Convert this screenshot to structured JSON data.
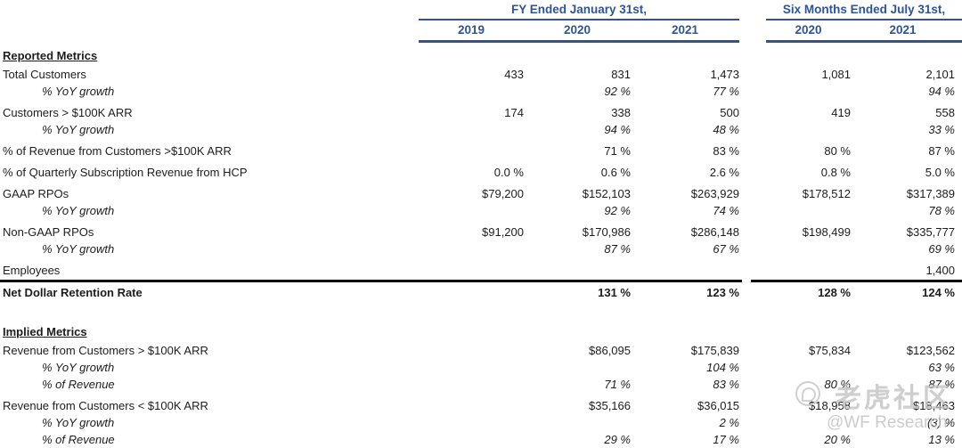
{
  "accent_color": "#2F5496",
  "header": {
    "groups": [
      {
        "title": "FY Ended January 31st,",
        "years": [
          "2019",
          "2020",
          "2021"
        ]
      },
      {
        "title": "Six Months Ended July 31st,",
        "years": [
          "2020",
          "2021"
        ]
      }
    ]
  },
  "table": {
    "columns": [
      "FY 2019",
      "FY 2020",
      "FY 2021",
      "6M 2020",
      "6M 2021"
    ],
    "sections": [
      {
        "title": "Reported Metrics",
        "rows": [
          {
            "label": "Total Customers",
            "sub": false,
            "bold": false,
            "rule_above": false,
            "gap_after": false,
            "values": [
              "433",
              "831",
              "1,473",
              "1,081",
              "2,101"
            ]
          },
          {
            "label": "% YoY growth",
            "sub": true,
            "bold": false,
            "rule_above": false,
            "gap_after": true,
            "values": [
              "",
              "92 %",
              "77 %",
              "",
              "94 %"
            ]
          },
          {
            "label": "Customers > $100K ARR",
            "sub": false,
            "bold": false,
            "rule_above": false,
            "gap_after": false,
            "values": [
              "174",
              "338",
              "500",
              "419",
              "558"
            ]
          },
          {
            "label": "% YoY growth",
            "sub": true,
            "bold": false,
            "rule_above": false,
            "gap_after": true,
            "values": [
              "",
              "94 %",
              "48 %",
              "",
              "33 %"
            ]
          },
          {
            "label": "% of Revenue from Customers >$100K ARR",
            "sub": false,
            "bold": false,
            "rule_above": false,
            "gap_after": true,
            "values": [
              "",
              "71 %",
              "83 %",
              "80 %",
              "87 %"
            ]
          },
          {
            "label": "% of Quarterly Subscription Revenue from HCP",
            "sub": false,
            "bold": false,
            "rule_above": false,
            "gap_after": true,
            "values": [
              "0.0 %",
              "0.6 %",
              "2.6 %",
              "0.8 %",
              "5.0 %"
            ]
          },
          {
            "label": "GAAP RPOs",
            "sub": false,
            "bold": false,
            "rule_above": false,
            "gap_after": false,
            "values": [
              "$79,200",
              "$152,103",
              "$263,929",
              "$178,512",
              "$317,389"
            ]
          },
          {
            "label": "% YoY growth",
            "sub": true,
            "bold": false,
            "rule_above": false,
            "gap_after": true,
            "values": [
              "",
              "92 %",
              "74 %",
              "",
              "78 %"
            ]
          },
          {
            "label": "Non-GAAP RPOs",
            "sub": false,
            "bold": false,
            "rule_above": false,
            "gap_after": false,
            "values": [
              "$91,200",
              "$170,986",
              "$286,148",
              "$198,499",
              "$335,777"
            ]
          },
          {
            "label": "% YoY growth",
            "sub": true,
            "bold": false,
            "rule_above": false,
            "gap_after": true,
            "values": [
              "",
              "87 %",
              "67 %",
              "",
              "69 %"
            ]
          },
          {
            "label": "Employees",
            "sub": false,
            "bold": false,
            "rule_above": false,
            "gap_after": false,
            "values": [
              "",
              "",
              "",
              "",
              "1,400"
            ]
          },
          {
            "label": "Net Dollar Retention Rate",
            "sub": false,
            "bold": true,
            "rule_above": true,
            "gap_after": false,
            "values": [
              "",
              "131 %",
              "123 %",
              "128 %",
              "124 %"
            ]
          }
        ]
      },
      {
        "title": "Implied Metrics",
        "rows": [
          {
            "label": "Revenue from Customers > $100K ARR",
            "sub": false,
            "bold": false,
            "rule_above": false,
            "gap_after": false,
            "values": [
              "",
              "$86,095",
              "$175,839",
              "$75,834",
              "$123,562"
            ]
          },
          {
            "label": "% YoY growth",
            "sub": true,
            "bold": false,
            "rule_above": false,
            "gap_after": false,
            "values": [
              "",
              "",
              "104 %",
              "",
              "63 %"
            ]
          },
          {
            "label": "% of Revenue",
            "sub": true,
            "bold": false,
            "rule_above": false,
            "gap_after": true,
            "values": [
              "",
              "71 %",
              "83 %",
              "80 %",
              "87 %"
            ]
          },
          {
            "label": "Revenue from Customers < $100K ARR",
            "sub": false,
            "bold": false,
            "rule_above": false,
            "gap_after": false,
            "values": [
              "",
              "$35,166",
              "$36,015",
              "$18,958",
              "$18,463"
            ]
          },
          {
            "label": "% YoY growth",
            "sub": true,
            "bold": false,
            "rule_above": false,
            "gap_after": false,
            "values": [
              "",
              "",
              "2 %",
              "",
              "(3) %"
            ]
          },
          {
            "label": "% of Revenue",
            "sub": true,
            "bold": false,
            "rule_above": false,
            "gap_after": false,
            "values": [
              "",
              "29 %",
              "17 %",
              "20 %",
              "13 %"
            ]
          }
        ]
      }
    ]
  },
  "watermark": {
    "brand": "老虎社区",
    "handle": "@WF Research"
  }
}
